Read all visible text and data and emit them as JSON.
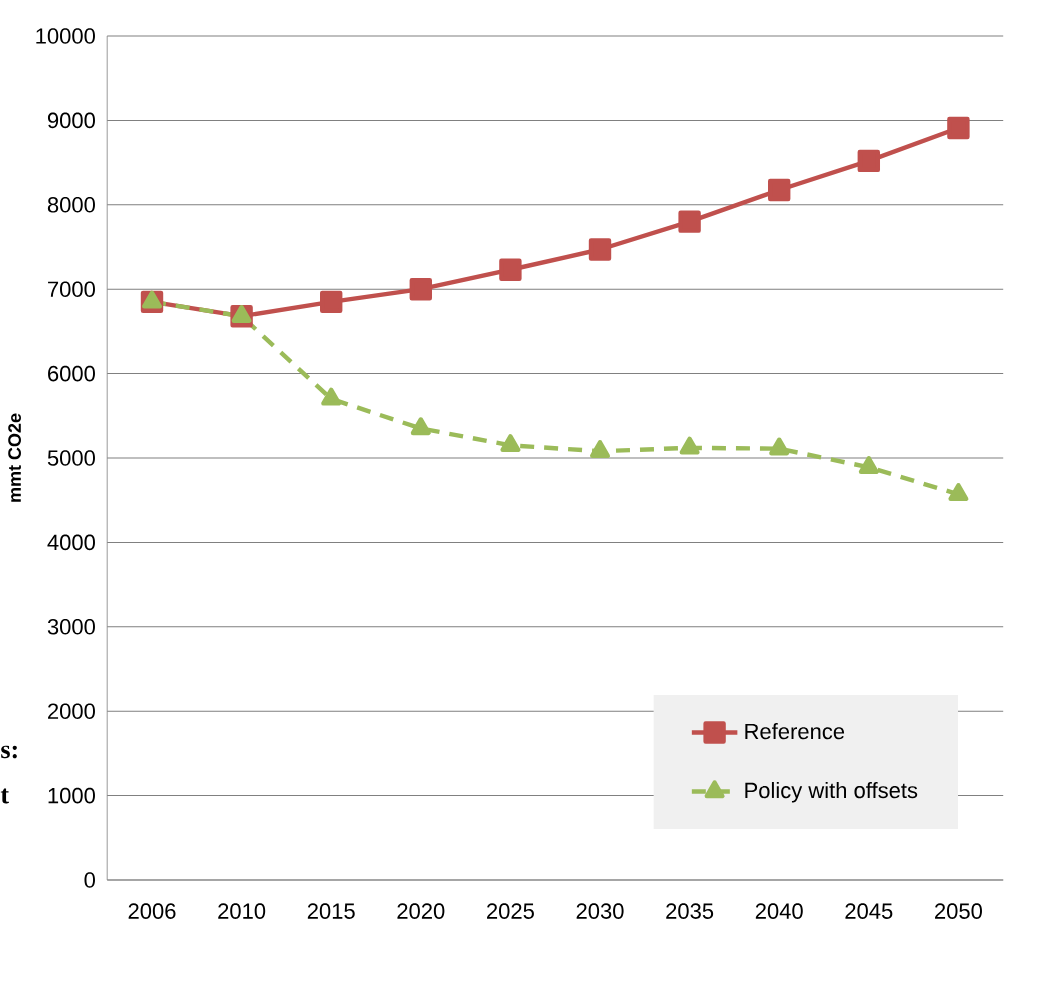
{
  "chart_data": {
    "type": "line",
    "ylabel": "mmt CO2e",
    "categories": [
      "2006",
      "2010",
      "2015",
      "2020",
      "2025",
      "2030",
      "2035",
      "2040",
      "2045",
      "2050"
    ],
    "series": [
      {
        "name": "Reference",
        "color": "#c0504d",
        "marker": "square",
        "line_style": "solid",
        "values": [
          6850,
          6680,
          6850,
          7000,
          7230,
          7470,
          7800,
          8175,
          8520,
          8910
        ]
      },
      {
        "name": "Policy with offsets",
        "color": "#9bbb59",
        "marker": "triangle",
        "line_style": "dashed",
        "values": [
          6850,
          6680,
          5700,
          5350,
          5150,
          5080,
          5120,
          5110,
          4890,
          4570
        ]
      }
    ],
    "ylim": [
      0,
      10000
    ],
    "yticks": [
      0,
      1000,
      2000,
      3000,
      4000,
      5000,
      6000,
      7000,
      8000,
      9000,
      10000
    ],
    "grid": "y",
    "legend": "bottom right",
    "annotations": [
      "s:",
      "t"
    ]
  }
}
